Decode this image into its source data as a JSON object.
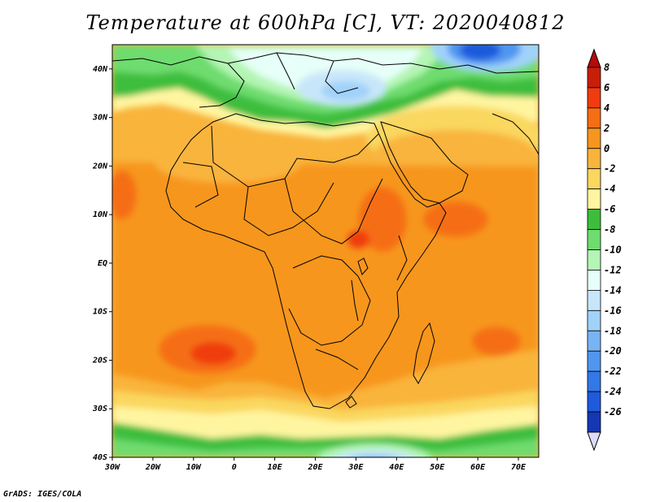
{
  "title": "Temperature at 600hPa [C], VT: 2020040812",
  "credit": "GrADS: IGES/COLA",
  "map": {
    "projection": "lat-lon",
    "lon_range": [
      -30,
      75
    ],
    "lat_range": [
      -40,
      45
    ],
    "lat_ticks": [
      {
        "value": 40,
        "label": "40N"
      },
      {
        "value": 30,
        "label": "30N"
      },
      {
        "value": 20,
        "label": "20N"
      },
      {
        "value": 10,
        "label": "10N"
      },
      {
        "value": 0,
        "label": "EQ"
      },
      {
        "value": -10,
        "label": "10S"
      },
      {
        "value": -20,
        "label": "20S"
      },
      {
        "value": -30,
        "label": "30S"
      },
      {
        "value": -40,
        "label": "40S"
      }
    ],
    "lon_ticks": [
      {
        "value": -30,
        "label": "30W"
      },
      {
        "value": -20,
        "label": "20W"
      },
      {
        "value": -10,
        "label": "10W"
      },
      {
        "value": 0,
        "label": "0"
      },
      {
        "value": 10,
        "label": "10E"
      },
      {
        "value": 20,
        "label": "20E"
      },
      {
        "value": 30,
        "label": "30E"
      },
      {
        "value": 40,
        "label": "40E"
      },
      {
        "value": 50,
        "label": "50E"
      },
      {
        "value": 60,
        "label": "60E"
      },
      {
        "value": 70,
        "label": "70E"
      }
    ]
  },
  "colorbar": {
    "bins": [
      {
        "label": "8",
        "color": "#c81e0a"
      },
      {
        "label": "6",
        "color": "#f03c0f"
      },
      {
        "label": "4",
        "color": "#f56e14"
      },
      {
        "label": "2",
        "color": "#f7961e"
      },
      {
        "label": "0",
        "color": "#f9b43c"
      },
      {
        "label": "-2",
        "color": "#fad75f"
      },
      {
        "label": "-4",
        "color": "#fff5a0"
      },
      {
        "label": "-6",
        "color": "#3cbe3c"
      },
      {
        "label": "-8",
        "color": "#6edc6e"
      },
      {
        "label": "-10",
        "color": "#b4f5b4"
      },
      {
        "label": "-12",
        "color": "#e6fff8"
      },
      {
        "label": "-14",
        "color": "#c8e6fa"
      },
      {
        "label": "-16",
        "color": "#a0d2fa"
      },
      {
        "label": "-18",
        "color": "#78b4f5"
      },
      {
        "label": "-20",
        "color": "#5096f0"
      },
      {
        "label": "-22",
        "color": "#3278e6"
      },
      {
        "label": "-24",
        "color": "#1e5adc"
      },
      {
        "label": "-26",
        "color": "#1437b4"
      }
    ],
    "top_arrow_color": "#b40a0a",
    "bottom_arrow_color": "#dcdcfa",
    "low_tail_color": "#0a1464"
  }
}
